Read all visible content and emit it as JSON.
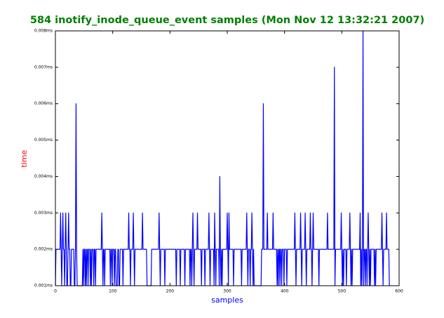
{
  "chart_data": {
    "type": "line",
    "title": "584 inotify_inode_queue_event samples (Mon Nov 12 13:32:21 2007)",
    "xlabel": "samples",
    "ylabel": "time",
    "color": "#0000ff",
    "xlim": [
      0,
      600
    ],
    "xticks": [
      0,
      100,
      200,
      300,
      400,
      500,
      600
    ],
    "ylim": [
      0.001,
      0.008
    ],
    "yticks": [
      {
        "value": 0.001,
        "label": "0.001ms"
      },
      {
        "value": 0.002,
        "label": "0.002ms"
      },
      {
        "value": 0.003,
        "label": "0.003ms"
      },
      {
        "value": 0.004,
        "label": "0.004ms"
      },
      {
        "value": 0.005,
        "label": "0.005ms"
      },
      {
        "value": 0.006,
        "label": "0.006ms"
      },
      {
        "value": 0.007,
        "label": "0.007ms"
      },
      {
        "value": 0.008,
        "label": "0.008ms"
      }
    ],
    "values": [
      0.001,
      0.002,
      0.002,
      0.002,
      0.002,
      0.002,
      0.002,
      0.002,
      0.002,
      0.003,
      0.002,
      0.001,
      0.002,
      0.003,
      0.002,
      0.002,
      0.001,
      0.002,
      0.003,
      0.002,
      0.001,
      0.001,
      0.002,
      0.003,
      0.002,
      0.002,
      0.001,
      0.001,
      0.002,
      0.002,
      0.002,
      0.002,
      0.002,
      0.001,
      0.001,
      0.002,
      0.006,
      0.002,
      0.001,
      0.001,
      0.001,
      0.001,
      0.001,
      0.001,
      0.001,
      0.001,
      0.001,
      0.001,
      0.002,
      0.001,
      0.002,
      0.002,
      0.001,
      0.002,
      0.001,
      0.002,
      0.002,
      0.001,
      0.002,
      0.002,
      0.002,
      0.001,
      0.002,
      0.001,
      0.002,
      0.002,
      0.002,
      0.001,
      0.002,
      0.002,
      0.001,
      0.002,
      0.002,
      0.002,
      0.002,
      0.002,
      0.002,
      0.002,
      0.002,
      0.002,
      0.002,
      0.003,
      0.002,
      0.001,
      0.002,
      0.002,
      0.001,
      0.002,
      0.002,
      0.002,
      0.002,
      0.002,
      0.002,
      0.002,
      0.002,
      0.002,
      0.001,
      0.002,
      0.002,
      0.001,
      0.002,
      0.002,
      0.002,
      0.001,
      0.002,
      0.002,
      0.001,
      0.001,
      0.001,
      0.002,
      0.002,
      0.001,
      0.001,
      0.002,
      0.002,
      0.002,
      0.002,
      0.002,
      0.001,
      0.002,
      0.002,
      0.002,
      0.002,
      0.002,
      0.002,
      0.002,
      0.002,
      0.002,
      0.003,
      0.002,
      0.002,
      0.001,
      0.002,
      0.002,
      0.002,
      0.002,
      0.003,
      0.002,
      0.001,
      0.002,
      0.002,
      0.002,
      0.002,
      0.002,
      0.002,
      0.002,
      0.002,
      0.002,
      0.002,
      0.002,
      0.002,
      0.002,
      0.003,
      0.002,
      0.002,
      0.002,
      0.002,
      0.002,
      0.002,
      0.002,
      0.001,
      0.001,
      0.001,
      0.001,
      0.001,
      0.001,
      0.001,
      0.001,
      0.002,
      0.002,
      0.002,
      0.002,
      0.002,
      0.002,
      0.002,
      0.002,
      0.002,
      0.002,
      0.002,
      0.002,
      0.002,
      0.003,
      0.002,
      0.001,
      0.002,
      0.002,
      0.002,
      0.002,
      0.002,
      0.002,
      0.002,
      0.001,
      0.002,
      0.002,
      0.002,
      0.002,
      0.002,
      0.002,
      0.002,
      0.002,
      0.002,
      0.002,
      0.002,
      0.002,
      0.002,
      0.002,
      0.002,
      0.002,
      0.002,
      0.002,
      0.002,
      0.001,
      0.002,
      0.002,
      0.002,
      0.002,
      0.002,
      0.002,
      0.001,
      0.002,
      0.002,
      0.002,
      0.002,
      0.002,
      0.002,
      0.002,
      0.001,
      0.002,
      0.002,
      0.002,
      0.002,
      0.002,
      0.002,
      0.002,
      0.002,
      0.001,
      0.002,
      0.002,
      0.001,
      0.002,
      0.003,
      0.002,
      0.001,
      0.002,
      0.002,
      0.002,
      0.002,
      0.002,
      0.003,
      0.002,
      0.002,
      0.002,
      0.002,
      0.002,
      0.002,
      0.001,
      0.002,
      0.002,
      0.002,
      0.002,
      0.002,
      0.001,
      0.002,
      0.002,
      0.002,
      0.002,
      0.002,
      0.002,
      0.003,
      0.002,
      0.001,
      0.002,
      0.002,
      0.002,
      0.002,
      0.002,
      0.002,
      0.001,
      0.003,
      0.002,
      0.001,
      0.002,
      0.002,
      0.002,
      0.002,
      0.002,
      0.001,
      0.004,
      0.002,
      0.001,
      0.002,
      0.001,
      0.002,
      0.002,
      0.002,
      0.002,
      0.002,
      0.002,
      0.002,
      0.002,
      0.003,
      0.002,
      0.001,
      0.003,
      0.002,
      0.002,
      0.002,
      0.002,
      0.002,
      0.002,
      0.002,
      0.001,
      0.002,
      0.002,
      0.002,
      0.002,
      0.002,
      0.002,
      0.002,
      0.002,
      0.002,
      0.002,
      0.002,
      0.002,
      0.002,
      0.001,
      0.002,
      0.002,
      0.002,
      0.002,
      0.002,
      0.002,
      0.002,
      0.002,
      0.003,
      0.002,
      0.001,
      0.002,
      0.002,
      0.002,
      0.001,
      0.002,
      0.002,
      0.003,
      0.002,
      0.001,
      0.002,
      0.001,
      0.001,
      0.001,
      0.001,
      0.001,
      0.001,
      0.001,
      0.001,
      0.001,
      0.001,
      0.001,
      0.001,
      0.001,
      0.002,
      0.002,
      0.002,
      0.006,
      0.002,
      0.002,
      0.002,
      0.002,
      0.002,
      0.002,
      0.003,
      0.002,
      0.002,
      0.002,
      0.002,
      0.002,
      0.002,
      0.002,
      0.002,
      0.002,
      0.003,
      0.002,
      0.002,
      0.002,
      0.002,
      0.002,
      0.002,
      0.001,
      0.002,
      0.001,
      0.002,
      0.002,
      0.001,
      0.002,
      0.002,
      0.001,
      0.002,
      0.002,
      0.002,
      0.001,
      0.002,
      0.002,
      0.002,
      0.002,
      0.001,
      0.002,
      0.002,
      0.002,
      0.002,
      0.002,
      0.002,
      0.002,
      0.002,
      0.002,
      0.002,
      0.002,
      0.002,
      0.002,
      0.003,
      0.002,
      0.001,
      0.002,
      0.002,
      0.002,
      0.002,
      0.002,
      0.002,
      0.002,
      0.003,
      0.002,
      0.001,
      0.002,
      0.002,
      0.002,
      0.002,
      0.002,
      0.003,
      0.002,
      0.001,
      0.002,
      0.002,
      0.002,
      0.002,
      0.002,
      0.002,
      0.003,
      0.002,
      0.002,
      0.001,
      0.002,
      0.003,
      0.002,
      0.002,
      0.002,
      0.002,
      0.002,
      0.002,
      0.002,
      0.002,
      0.002,
      0.001,
      0.002,
      0.002,
      0.002,
      0.002,
      0.002,
      0.002,
      0.002,
      0.002,
      0.002,
      0.002,
      0.002,
      0.002,
      0.002,
      0.002,
      0.003,
      0.002,
      0.002,
      0.002,
      0.002,
      0.002,
      0.002,
      0.002,
      0.002,
      0.002,
      0.002,
      0.002,
      0.007,
      0.001,
      0.002,
      0.002,
      0.002,
      0.002,
      0.002,
      0.002,
      0.002,
      0.002,
      0.002,
      0.002,
      0.003,
      0.002,
      0.001,
      0.002,
      0.001,
      0.002,
      0.002,
      0.002,
      0.002,
      0.001,
      0.002,
      0.002,
      0.002,
      0.002,
      0.002,
      0.003,
      0.002,
      0.001,
      0.002,
      0.001,
      0.002,
      0.002,
      0.002,
      0.002,
      0.002,
      0.002,
      0.002,
      0.002,
      0.002,
      0.002,
      0.002,
      0.002,
      0.002,
      0.003,
      0.001,
      0.002,
      0.001,
      0.002,
      0.008,
      0.001,
      0.002,
      0.002,
      0.001,
      0.002,
      0.002,
      0.001,
      0.002,
      0.003,
      0.002,
      0.001,
      0.002,
      0.001,
      0.002,
      0.002,
      0.002,
      0.002,
      0.002,
      0.002,
      0.001,
      0.002,
      0.001,
      0.002,
      0.002,
      0.002,
      0.002,
      0.002,
      0.002,
      0.002,
      0.002,
      0.002,
      0.002,
      0.003,
      0.002,
      0.001,
      0.002,
      0.002,
      0.002,
      0.002,
      0.002,
      0.003,
      0.002,
      0.002,
      0.002,
      0.002,
      0.001
    ]
  }
}
